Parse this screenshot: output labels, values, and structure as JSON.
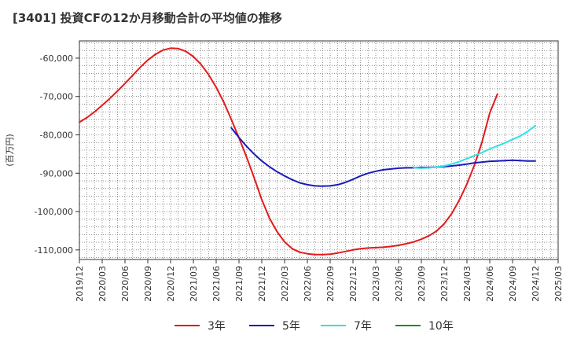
{
  "chart_data": {
    "type": "line",
    "title": "[3401]  投資CFの12か月移動合計の平均値の推移",
    "ylabel": "(百万円)",
    "xlabel": "",
    "ylim": [
      -112500,
      -55500
    ],
    "yticks": [
      -60000,
      -70000,
      -80000,
      -90000,
      -100000,
      -110000
    ],
    "ytick_labels": [
      "-60,000",
      "-70,000",
      "-80,000",
      "-90,000",
      "-100,000",
      "-110,000"
    ],
    "xticks": [
      "2019/12",
      "2020/03",
      "2020/06",
      "2020/09",
      "2020/12",
      "2021/03",
      "2021/06",
      "2021/09",
      "2021/12",
      "2022/03",
      "2022/06",
      "2022/09",
      "2022/12",
      "2023/03",
      "2023/06",
      "2023/09",
      "2023/12",
      "2024/03",
      "2024/06",
      "2024/09",
      "2024/12",
      "2025/03"
    ],
    "grid": true,
    "legend_position": "bottom",
    "series": [
      {
        "name": "3年",
        "color": "#e31a1c",
        "x": [
          "2019/12",
          "2020/01",
          "2020/02",
          "2020/03",
          "2020/04",
          "2020/05",
          "2020/06",
          "2020/07",
          "2020/08",
          "2020/09",
          "2020/10",
          "2020/11",
          "2020/12",
          "2021/01",
          "2021/02",
          "2021/03",
          "2021/04",
          "2021/05",
          "2021/06",
          "2021/07",
          "2021/08",
          "2021/09",
          "2021/10",
          "2021/11",
          "2021/12",
          "2022/01",
          "2022/02",
          "2022/03",
          "2022/04",
          "2022/05",
          "2022/06",
          "2022/07",
          "2022/08",
          "2022/09",
          "2022/10",
          "2022/11",
          "2022/12",
          "2023/01",
          "2023/02",
          "2023/03",
          "2023/04",
          "2023/05",
          "2023/06",
          "2023/07",
          "2023/08",
          "2023/09",
          "2023/10",
          "2023/11",
          "2023/12",
          "2024/01",
          "2024/02",
          "2024/03",
          "2024/04",
          "2024/05",
          "2024/06",
          "2024/07",
          "2024/08",
          "2024/09",
          "2024/10",
          "2024/11",
          "2024/12"
        ],
        "values": [
          -76700,
          -75500,
          -74000,
          -72300,
          -70500,
          -68600,
          -66600,
          -64500,
          -62400,
          -60500,
          -59000,
          -57900,
          -57400,
          -57500,
          -58200,
          -59600,
          -61600,
          -64300,
          -67600,
          -71500,
          -76000,
          -80800,
          -85800,
          -91200,
          -96900,
          -101700,
          -105200,
          -107900,
          -109700,
          -110600,
          -111000,
          -111200,
          -111200,
          -111100,
          -110800,
          -110400,
          -110000,
          -109700,
          -109500,
          -109400,
          -109300,
          -109100,
          -108800,
          -108400,
          -107900,
          -107200,
          -106300,
          -105100,
          -103200,
          -100500,
          -97000,
          -92800,
          -87800,
          -81800,
          -74300,
          -69400,
          null,
          null,
          null,
          null,
          null
        ],
        "start_index": 0
      },
      {
        "name": "5年",
        "color": "#1a1aba",
        "x": [
          "2021/08",
          "2021/09",
          "2021/10",
          "2021/11",
          "2021/12",
          "2022/01",
          "2022/02",
          "2022/03",
          "2022/04",
          "2022/05",
          "2022/06",
          "2022/07",
          "2022/08",
          "2022/09",
          "2022/10",
          "2022/11",
          "2022/12",
          "2023/01",
          "2023/02",
          "2023/03",
          "2023/04",
          "2023/05",
          "2023/06",
          "2023/07",
          "2023/08",
          "2023/09",
          "2023/10",
          "2023/11",
          "2023/12",
          "2024/01",
          "2024/02",
          "2024/03",
          "2024/04",
          "2024/05",
          "2024/06",
          "2024/07",
          "2024/08",
          "2024/09",
          "2024/10",
          "2024/11",
          "2024/12"
        ],
        "values": [
          -78200,
          -80700,
          -83000,
          -85000,
          -86800,
          -88300,
          -89600,
          -90700,
          -91700,
          -92500,
          -93000,
          -93300,
          -93400,
          -93300,
          -93000,
          -92400,
          -91600,
          -90700,
          -90000,
          -89500,
          -89100,
          -88900,
          -88700,
          -88600,
          -88600,
          -88500,
          -88500,
          -88400,
          -88300,
          -88100,
          -87900,
          -87600,
          -87300,
          -87100,
          -86900,
          -86800,
          -86700,
          -86600,
          -86700,
          -86800,
          -86800
        ]
      },
      {
        "name": "7年",
        "color": "#33e0e0",
        "x": [
          "2023/08",
          "2023/09",
          "2023/10",
          "2023/11",
          "2023/12",
          "2024/01",
          "2024/02",
          "2024/03",
          "2024/04",
          "2024/05",
          "2024/06",
          "2024/07",
          "2024/08",
          "2024/09",
          "2024/10",
          "2024/11",
          "2024/12"
        ],
        "values": [
          -88600,
          -88700,
          -88600,
          -88400,
          -88100,
          -87600,
          -87000,
          -86200,
          -85400,
          -84600,
          -83700,
          -82900,
          -82100,
          -81200,
          -80300,
          -79100,
          -77600
        ]
      },
      {
        "name": "10年",
        "color": "#228b22",
        "x": [],
        "values": []
      }
    ]
  }
}
